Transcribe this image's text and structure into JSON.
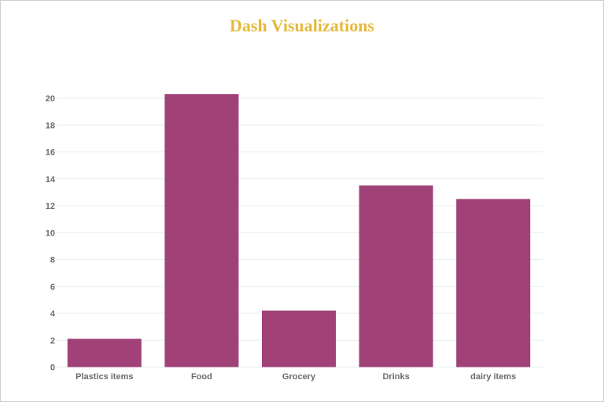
{
  "chart_data": {
    "type": "bar",
    "title": "Dash Visualizations",
    "categories": [
      "Plastics items",
      "Food",
      "Grocery",
      "Drinks",
      "dairy items"
    ],
    "values": [
      2.1,
      20.3,
      4.2,
      13.5,
      12.5
    ],
    "xlabel": "",
    "ylabel": "",
    "ylim": [
      0,
      20.8
    ],
    "yticks": [
      0,
      2,
      4,
      6,
      8,
      10,
      12,
      14,
      16,
      18,
      20
    ],
    "grid": true,
    "colors": {
      "bar": "#a04177",
      "title": "#e5b93a",
      "grid": "#e4edf3",
      "tick": "#6b6b6b"
    }
  }
}
